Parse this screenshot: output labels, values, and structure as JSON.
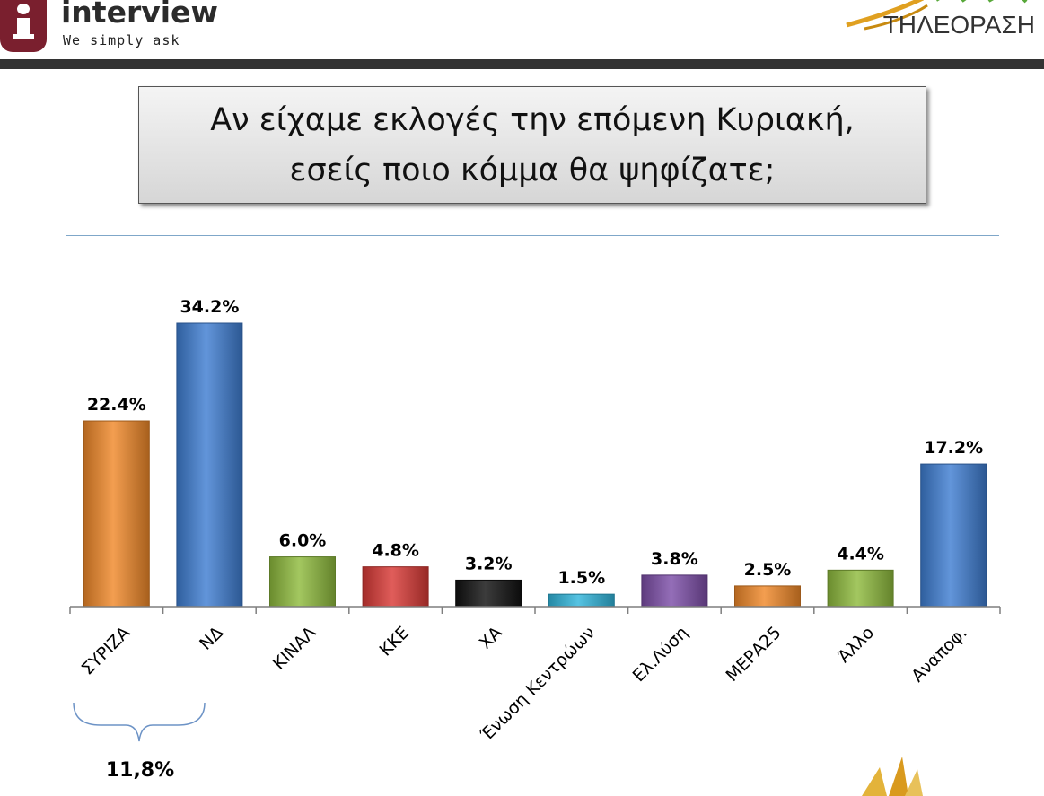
{
  "header": {
    "brand_name": "interview",
    "brand_tagline": "We simply ask",
    "channel_label": "ΤΗΛΕΟΡΑΣΗ"
  },
  "question": {
    "line1": "Αν είχαμε εκλογές την επόμενη Κυριακή,",
    "line2": "εσείς ποιο κόμμα θα ψηφίζατε;"
  },
  "chart_data": {
    "type": "bar",
    "title": "",
    "xlabel": "",
    "ylabel": "",
    "ylim": [
      0,
      40
    ],
    "grid": false,
    "categories": [
      "ΣΥΡΙΖΑ",
      "ΝΔ",
      "ΚΙΝΑΛ",
      "ΚΚΕ",
      "ΧΑ",
      "Ένωση Κεντρώων",
      "Ελ.Λύση",
      "ΜΕΡΑ25",
      "Άλλο",
      "Αναποφ."
    ],
    "values": [
      22.4,
      34.2,
      6.0,
      4.8,
      3.2,
      1.5,
      3.8,
      2.5,
      4.4,
      17.2
    ],
    "value_labels": [
      "22.4%",
      "34.2%",
      "6.0%",
      "4.8%",
      "3.2%",
      "1.5%",
      "3.8%",
      "2.5%",
      "4.4%",
      "17.2%"
    ],
    "colors": [
      "#f0892a",
      "#3f7ed2",
      "#8fbb3d",
      "#d93a36",
      "#111111",
      "#31b6dc",
      "#7d4ea8",
      "#f0892a",
      "#8fbb3d",
      "#3f7ed2"
    ],
    "annotation": {
      "spans": [
        "ΣΥΡΙΖΑ",
        "ΝΔ"
      ],
      "text": "11,8%"
    }
  }
}
